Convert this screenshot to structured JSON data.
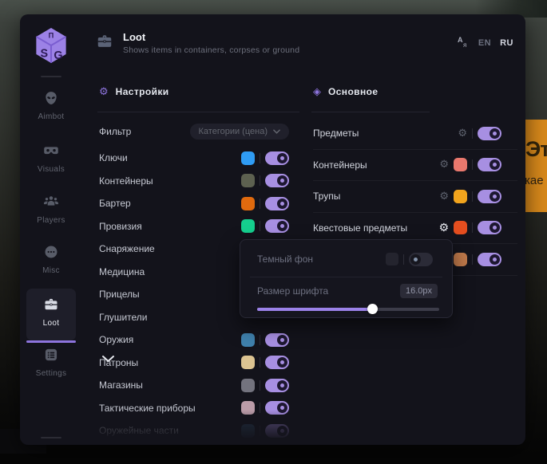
{
  "header": {
    "title": "Loot",
    "subtitle": "Shows items in containers, corpses or ground",
    "languages": [
      {
        "label": "EN",
        "active": false
      },
      {
        "label": "RU",
        "active": true
      }
    ]
  },
  "sidebar": {
    "items": [
      {
        "label": "Aimbot"
      },
      {
        "label": "Visuals"
      },
      {
        "label": "Players"
      },
      {
        "label": "Misc"
      },
      {
        "label": "Loot",
        "active": true
      },
      {
        "label": "Settings"
      }
    ]
  },
  "left_panel": {
    "title": "Настройки",
    "filter": {
      "label": "Фильтр",
      "value": "Категории (цена)"
    },
    "rows": [
      {
        "label": "Ключи",
        "color": "#2f9cf4",
        "enabled": true
      },
      {
        "label": "Контейнеры",
        "color": "#5d6150",
        "enabled": true
      },
      {
        "label": "Бартер",
        "color": "#e06a0e",
        "enabled": true
      },
      {
        "label": "Провизия",
        "color": "#15cf8e",
        "enabled": true
      },
      {
        "label": "Снаряжение",
        "color": null,
        "enabled": true
      },
      {
        "label": "Медицина",
        "color": null,
        "enabled": true
      },
      {
        "label": "Прицелы",
        "color": null,
        "enabled": true
      },
      {
        "label": "Глушители",
        "color": null,
        "enabled": true
      },
      {
        "label": "Оружия",
        "color": "#3f81ad",
        "enabled": true
      },
      {
        "label": "Патроны",
        "color": "#dcc492",
        "enabled": true
      },
      {
        "label": "Магазины",
        "color": "#73737e",
        "enabled": true
      },
      {
        "label": "Тактические приборы",
        "color": "#bb9ca8",
        "enabled": true
      },
      {
        "label": "Оружейные части",
        "color": "#2d4a63",
        "enabled": true
      }
    ]
  },
  "right_panel": {
    "title": "Основное",
    "rows": [
      {
        "label": "Предметы",
        "color": null,
        "enabled": true
      },
      {
        "label": "Контейнеры",
        "color": "#e9786d",
        "enabled": true
      },
      {
        "label": "Трупы",
        "color": "#f2a41d",
        "enabled": true
      },
      {
        "label": "Квестовые предметы",
        "color": "#e54e1f",
        "enabled": true
      },
      {
        "label": "",
        "color": "#c07a4b",
        "enabled": true
      }
    ]
  },
  "popup": {
    "dark_bg": {
      "label": "Темный фон",
      "swatch": "#24242e",
      "enabled": false
    },
    "font_size": {
      "label": "Размер шрифта",
      "value": "16.0px",
      "percent": 63
    }
  },
  "background_tooltip": {
    "line1": "Эт",
    "line2": "кае"
  },
  "colors": {
    "accent": "#8d74dd",
    "toggle_on": "#a78fe2",
    "panel_bg": "#13131b"
  }
}
